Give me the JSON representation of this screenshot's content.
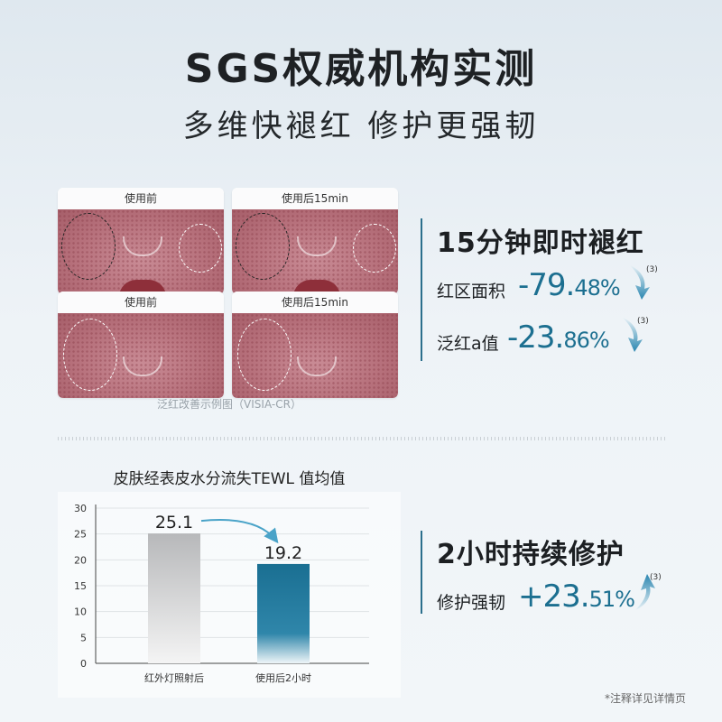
{
  "header": {
    "title": "SGS权威机构实测",
    "subtitle": "多维快褪红 修护更强韧"
  },
  "photos": [
    {
      "caption": "使用前"
    },
    {
      "caption": "使用后15min"
    },
    {
      "caption": "使用前"
    },
    {
      "caption": "使用后15min"
    }
  ],
  "photo_caption": "泛红改善示例图（VISIA-CR）",
  "section1": {
    "heading": "15分钟即时褪红",
    "stats": [
      {
        "label": "红区面积",
        "sign": "-",
        "main": "79.",
        "small": "48%",
        "note": "(3)",
        "direction": "down"
      },
      {
        "label": "泛红a值",
        "sign": "-",
        "main": "23.",
        "small": "86%",
        "note": "(3)",
        "direction": "down"
      }
    ]
  },
  "section2": {
    "heading": "2小时持续修护",
    "stats": [
      {
        "label": "修护强韧",
        "sign": "+",
        "main": "23.",
        "small": "51%",
        "note": "(3)",
        "direction": "up"
      }
    ]
  },
  "chart_data": {
    "type": "bar",
    "title": "皮肤经表皮水分流失TEWL 值均值",
    "categories": [
      "红外灯照射后",
      "使用后2小时"
    ],
    "values": [
      25.1,
      19.2
    ],
    "data_labels": [
      "25.1",
      "19.2"
    ],
    "ylim": [
      0,
      30
    ],
    "yticks": [
      "0",
      "5",
      "10",
      "15",
      "20",
      "25",
      "30"
    ],
    "colors": [
      "#b9babc",
      "#1a6f92"
    ],
    "grid": true
  },
  "footnote": "*注释详见详情页",
  "colors": {
    "accent": "#1c6f90",
    "text": "#1c1f22"
  }
}
